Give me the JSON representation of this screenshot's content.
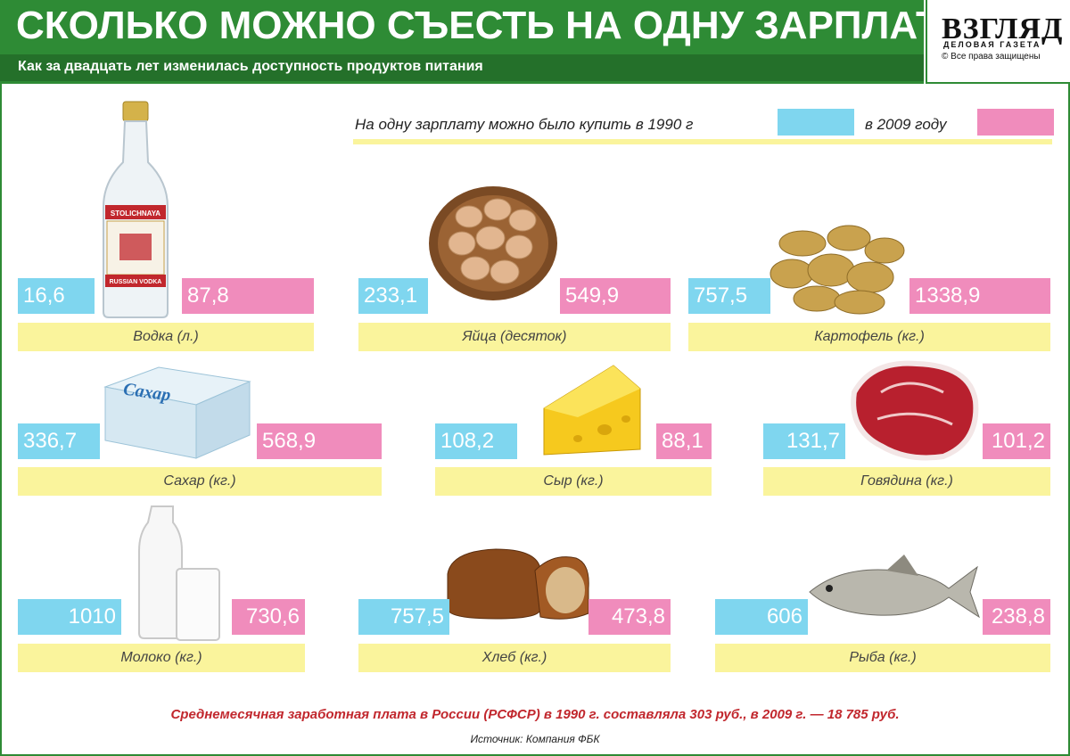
{
  "header": {
    "title": "СКОЛЬКО МОЖНО СЪЕСТЬ НА ОДНУ ЗАРПЛАТУ",
    "subtitle": "Как за двадцать лет изменилась доступность продуктов питания"
  },
  "logo": {
    "name": "ВЗГЛЯД",
    "tagline": "ДЕЛОВАЯ ГАЗЕТА",
    "copyright": "© Все права защищены"
  },
  "legend": {
    "label_1990": "На одну зарплату можно было купить в 1990 г",
    "label_2009": "в 2009 году",
    "color_1990": "#7fd6ef",
    "color_2009": "#f08cbc"
  },
  "chart_data": {
    "type": "table",
    "title": "СКОЛЬКО МОЖНО СЪЕСТЬ НА ОДНУ ЗАРПЛАТУ",
    "series": [
      {
        "name": "1990",
        "values": [
          "16,6",
          "233,1",
          "757,5",
          "336,7",
          "108,2",
          "131,7",
          "1010",
          "757,5",
          "606"
        ]
      },
      {
        "name": "2009",
        "values": [
          "87,8",
          "549,9",
          "1338,9",
          "568,9",
          "88,1",
          "101,2",
          "730,6",
          "473,8",
          "238,8"
        ]
      }
    ],
    "categories": [
      "Водка (л.)",
      "Яйца (десяток)",
      "Картофель (кг.)",
      "Сахар (кг.)",
      "Сыр (кг.)",
      "Говядина (кг.)",
      "Молоко (кг.)",
      "Хлеб (кг.)",
      "Рыба (кг.)"
    ],
    "items": [
      {
        "label": "Водка (л.)",
        "v1990": "16,6",
        "v2009": "87,8"
      },
      {
        "label": "Яйца (десяток)",
        "v1990": "233,1",
        "v2009": "549,9"
      },
      {
        "label": "Картофель (кг.)",
        "v1990": "757,5",
        "v2009": "1338,9"
      },
      {
        "label": "Сахар (кг.)",
        "v1990": "336,7",
        "v2009": "568,9"
      },
      {
        "label": "Сыр (кг.)",
        "v1990": "108,2",
        "v2009": "88,1"
      },
      {
        "label": "Говядина (кг.)",
        "v1990": "131,7",
        "v2009": "101,2"
      },
      {
        "label": "Молоко (кг.)",
        "v1990": "1010",
        "v2009": "730,6"
      },
      {
        "label": "Хлеб (кг.)",
        "v1990": "757,5",
        "v2009": "473,8"
      },
      {
        "label": "Рыба (кг.)",
        "v1990": "606",
        "v2009": "238,8"
      }
    ]
  },
  "illustrations": {
    "vodka_label_top": "STOLICHNAYA",
    "vodka_label_bottom": "RUSSIAN VODKA",
    "sugar_pack_text": "Сахар"
  },
  "footer": {
    "note": "Среднемесячная заработная плата в России (РСФСР) в 1990 г. составляла 303 руб., в 2009 г. — 18 785 руб.",
    "source": "Источник: Компания ФБК"
  }
}
